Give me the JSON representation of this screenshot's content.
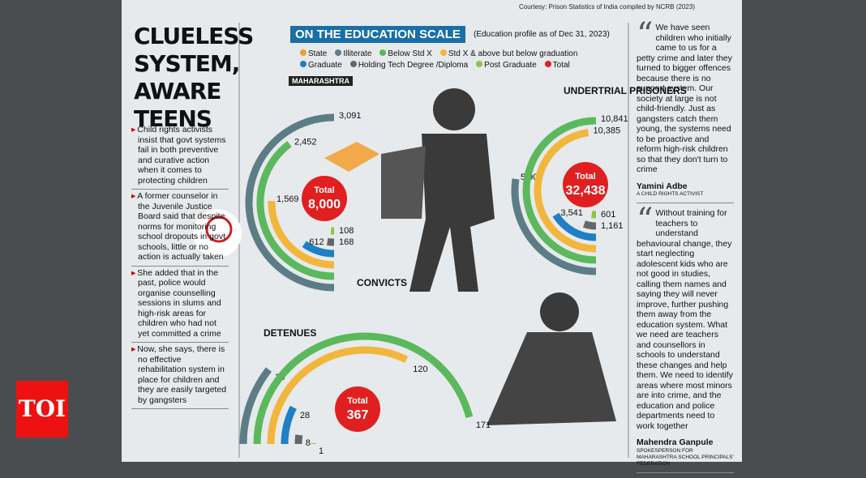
{
  "courtesy": "Courtesy: Prison Statistics of India compiled by NCRB (2023)",
  "headline": "CLUELESS SYSTEM, AWARE TEENS",
  "bullets": [
    "Child rights activists insist that govt systems fail in both preventive and curative action when it comes to protecting children",
    "A former counselor in the Juvenile Justice Board said that despite norms for monitoring school dropouts in govt schools, little or no action is actually taken",
    "She added that in the past, police would organise counselling sessions in slums and high-risk areas for children who had not yet committed a crime",
    "Now, she says, there is no effective rehabilitation system in place for children and they are easily targeted by gangsters"
  ],
  "scale_title": "ON THE EDUCATION SCALE",
  "scale_note": "(Education profile as of Dec 31, 2023)",
  "legend": {
    "names": [
      "State",
      "Illiterate",
      "Below Std X",
      "Std X & above but below graduation",
      "Graduate",
      "Holding Tech Degree /Diploma",
      "Post Graduate",
      "Total"
    ],
    "colors": [
      "#f0a030",
      "#5d7d86",
      "#5cb85c",
      "#f2b63c",
      "#1f7fc4",
      "#666666",
      "#8cc63f",
      "#e02020"
    ]
  },
  "state": "MAHARASHTRA",
  "chart_data": [
    {
      "type": "radial-bar",
      "title": "CONVICTS",
      "values": [
        3091,
        2452,
        1569,
        612,
        168,
        108
      ],
      "value_labels": [
        "3,091",
        "2,452",
        "1,569",
        "612",
        "168",
        "108"
      ],
      "total_caption": "Total",
      "total": 8000,
      "total_label": "8,000"
    },
    {
      "type": "radial-bar",
      "title": "UNDERTRIAL PRISONERS",
      "values": [
        5909,
        10841,
        10385,
        3541,
        1161,
        601
      ],
      "value_labels": [
        "5,909",
        "10,841",
        "10,385",
        "3,541",
        "1,161",
        "601"
      ],
      "total_caption": "Total",
      "total": 32438,
      "total_label": "32,438"
    },
    {
      "type": "radial-bar",
      "title": "DETENUES",
      "values": [
        39,
        171,
        120,
        28,
        8,
        1
      ],
      "total_caption": "Total",
      "total": 367
    }
  ],
  "quotes": [
    {
      "text": "We have seen children who initially came to us for a petty crime and later they turned to bigger offences because there is no support system. Our society at large is not child-friendly. Just as gangsters catch them young, the systems need to be proactive and reform high-risk children so that they don't turn to crime",
      "name": "Yamini Adbe",
      "role": "A CHILD RIGHTS ACTIVIST"
    },
    {
      "text": "Without training for teachers to understand behavioural change, they start neglecting adolescent kids who are not good in studies, calling them names and saying they will never improve, further pushing them away from the education system. What we need are teachers and counsellors in schools to understand these changes and help them. We need to identify areas where most minors are into crime, and the education and police departments need to work together",
      "name": "Mahendra Ganpule",
      "role": "SPOKESPERSON FOR MAHARASHTRA SCHOOL PRINCIPALS' FEDERATION"
    }
  ],
  "logo": "TOI"
}
